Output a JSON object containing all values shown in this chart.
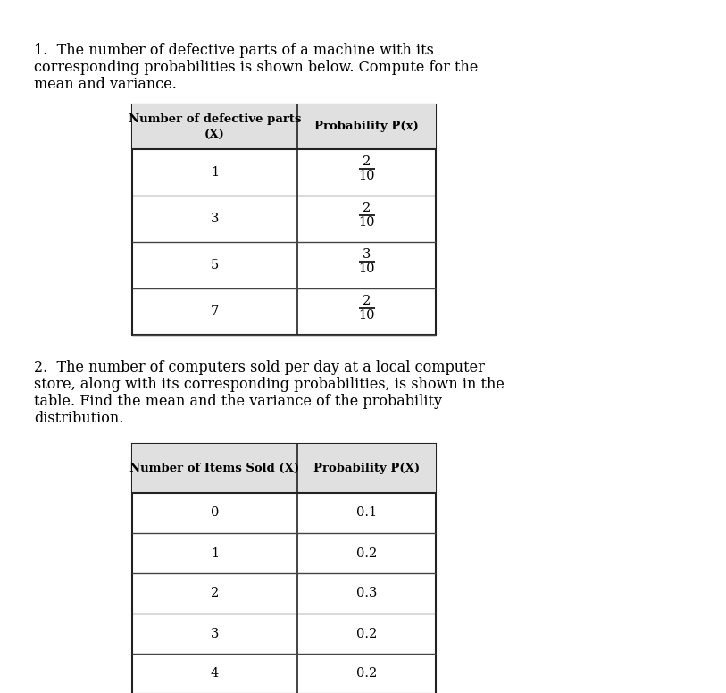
{
  "bg_color": "#ffffff",
  "text_color": "#000000",
  "para1_lines": [
    "1.  The number of defective parts of a machine with its",
    "corresponding probabilities is shown below. Compute for the",
    "mean and variance."
  ],
  "para2_lines": [
    "2.  The number of computers sold per day at a local computer",
    "store, along with its corresponding probabilities, is shown in the",
    "table. Find the mean and the variance of the probability",
    "distribution."
  ],
  "t1_col1_header": "Number of defective parts\n(X)",
  "t1_col2_header": "Probability P(x)",
  "t1_rows_x": [
    "1",
    "3",
    "5",
    "7"
  ],
  "t1_rows_num": [
    "2",
    "2",
    "3",
    "2"
  ],
  "t1_rows_den": [
    "10",
    "10",
    "10",
    "10"
  ],
  "t2_col1_header": "Number of Items Sold (X)",
  "t2_col2_header": "Probability P(X)",
  "t2_rows_x": [
    "0",
    "1",
    "2",
    "3",
    "4"
  ],
  "t2_rows_p": [
    "0.1",
    "0.2",
    "0.3",
    "0.2",
    "0.2"
  ],
  "font_size_para": 11.5,
  "font_size_hdr": 9.5,
  "font_size_cell": 10.5
}
